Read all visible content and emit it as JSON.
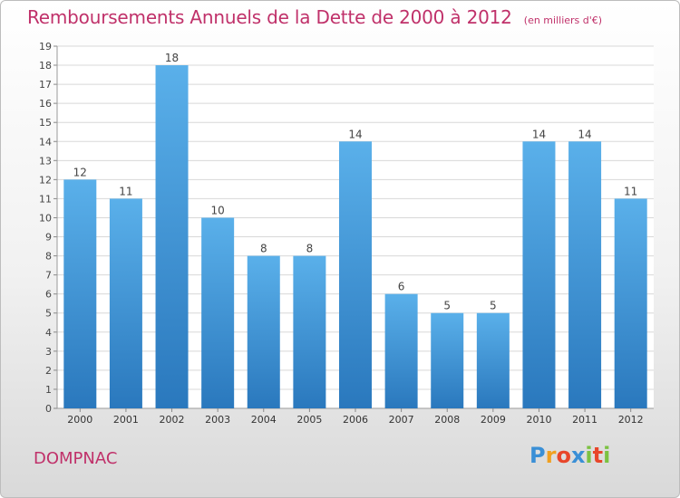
{
  "title": "Remboursements Annuels de la Dette de 2000 à 2012",
  "subtitle": "(en milliers d'€)",
  "commune": "DOMPNAC",
  "brand": {
    "letters": [
      "P",
      "r",
      "o",
      "x",
      "i",
      "t",
      "i"
    ],
    "colors": [
      "#3a8fd6",
      "#f0a020",
      "#e8462a",
      "#3a8fd6",
      "#7cc242",
      "#e8462a",
      "#7cc242"
    ]
  },
  "colors": {
    "bar_top": "#5ab0ea",
    "bar_bottom": "#2a78bd",
    "title": "#c0316a"
  },
  "chart_data": {
    "type": "bar",
    "categories": [
      "2000",
      "2001",
      "2002",
      "2003",
      "2004",
      "2005",
      "2006",
      "2007",
      "2008",
      "2009",
      "2010",
      "2011",
      "2012"
    ],
    "values": [
      12,
      11,
      18,
      10,
      8,
      8,
      14,
      6,
      5,
      5,
      14,
      14,
      11
    ],
    "yticks": [
      "0",
      "1",
      "2",
      "3",
      "4",
      "5",
      "6",
      "7",
      "8",
      "9",
      "10",
      "11",
      "12",
      "13",
      "14",
      "15",
      "16",
      "17",
      "18",
      "19"
    ],
    "ylim": [
      0,
      19
    ],
    "grid": true
  }
}
